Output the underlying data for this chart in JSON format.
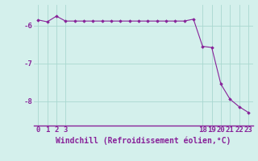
{
  "x": [
    0,
    1,
    2,
    3,
    4,
    5,
    6,
    7,
    8,
    9,
    10,
    11,
    12,
    13,
    14,
    15,
    16,
    17,
    18,
    19,
    20,
    21,
    22,
    23
  ],
  "y": [
    -5.85,
    -5.9,
    -5.75,
    -5.88,
    -5.88,
    -5.88,
    -5.88,
    -5.88,
    -5.88,
    -5.88,
    -5.88,
    -5.88,
    -5.88,
    -5.88,
    -5.88,
    -5.88,
    -5.88,
    -5.83,
    -6.55,
    -6.58,
    -7.55,
    -7.95,
    -8.15,
    -8.3
  ],
  "line_color": "#882299",
  "marker_color": "#882299",
  "bg_color": "#d4f0ec",
  "grid_color": "#aad8d0",
  "xlabel": "Windchill (Refroidissement éolien,°C)",
  "xlabel_color": "#882299",
  "tick_color": "#882299",
  "spine_color": "#882299",
  "yticks": [
    -8,
    -7,
    -6
  ],
  "ytick_labels": [
    "-8",
    "-7",
    "-6"
  ],
  "xtick_positions": [
    0,
    1,
    2,
    3,
    18,
    19,
    20,
    21,
    22,
    23
  ],
  "xtick_labels": [
    "0",
    "1",
    "2",
    "3",
    "18",
    "19",
    "20",
    "21",
    "22",
    "23"
  ],
  "ylim": [
    -8.65,
    -5.45
  ],
  "xlim": [
    -0.5,
    23.5
  ]
}
